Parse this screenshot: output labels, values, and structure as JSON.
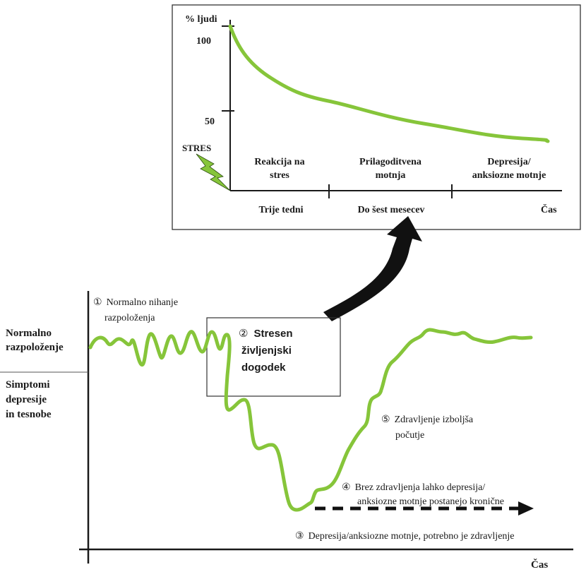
{
  "colors": {
    "curve": "#86c53a",
    "ink": "#1a1a1a",
    "frame": "#333333"
  },
  "inset": {
    "y_axis_label": "% ljudi",
    "y_tick_100": "100",
    "y_tick_50": "50",
    "stress_label": "STRES",
    "stress_icon": "lightning-bolt-icon",
    "phase1": {
      "line1": "Reakcija na",
      "line2": "stres"
    },
    "phase2": {
      "line1": "Prilagoditvena",
      "line2": "motnja"
    },
    "phase3": {
      "line1": "Depresija/",
      "line2": "anksiozne motnje"
    },
    "period1": "Trije tedni",
    "period2": "Do šest mesecev",
    "x_axis_label": "Čas"
  },
  "main": {
    "left_label_top": {
      "line1": "Normalno",
      "line2": "razpoloženje"
    },
    "left_label_bottom": {
      "line1": "Simptomi",
      "line2": "depresije",
      "line3": "in tesnobe"
    },
    "note1": {
      "marker": "①",
      "line1": "Normalno nihanje",
      "line2": "razpoloženja"
    },
    "note2": {
      "marker": "②",
      "line1": "Stresen",
      "line2": "življenjski",
      "line3": "dogodek"
    },
    "note3": {
      "marker": "③",
      "text": "Depresija/anksiozne motnje, potrebno je zdravljenje"
    },
    "note4": {
      "marker": "④",
      "line1": "Brez zdravljenja lahko depresija/",
      "line2": "anksiozne motnje postanejo kronične"
    },
    "note5": {
      "marker": "⑤",
      "line1": "Zdravljenje izboljša",
      "line2": "počutje"
    },
    "x_axis_label": "Čas",
    "arrow_icon": "curved-arrow-icon"
  }
}
